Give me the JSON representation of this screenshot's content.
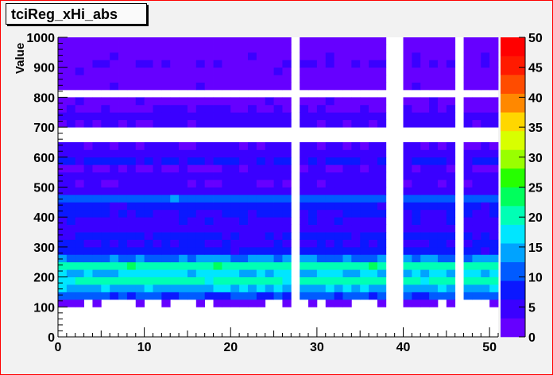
{
  "title": "tciReg_xHi_abs",
  "chart_data": {
    "type": "heatmap",
    "title": "tciReg_xHi_abs",
    "xlabel": "",
    "ylabel": "Value",
    "xlim": [
      0,
      51
    ],
    "ylim": [
      0,
      1000
    ],
    "x_ticks": [
      "0",
      "10",
      "20",
      "30",
      "40",
      "50"
    ],
    "y_ticks": [
      "0",
      "100",
      "200",
      "300",
      "400",
      "500",
      "600",
      "700",
      "800",
      "900",
      "1000"
    ],
    "colorbar_range": [
      0,
      50
    ],
    "colorbar_ticks": [
      "0",
      "5",
      "10",
      "15",
      "20",
      "25",
      "30",
      "35",
      "40",
      "45",
      "50"
    ],
    "grid": false,
    "empty_columns": [
      27,
      38,
      39,
      46
    ],
    "empty_rows_y": [
      812.5,
      675
    ],
    "bin_count_bands": [
      {
        "y_from": 0,
        "y_to": 25,
        "value": 0
      },
      {
        "y_from": 100,
        "y_to": 125,
        "value": 2
      },
      {
        "y_from": 125,
        "y_to": 150,
        "value": 11
      },
      {
        "y_from": 150,
        "y_to": 175,
        "value": 16
      },
      {
        "y_from": 175,
        "y_to": 200,
        "value": 21
      },
      {
        "y_from": 200,
        "y_to": 225,
        "value": 17
      },
      {
        "y_from": 225,
        "y_to": 250,
        "value": 22
      },
      {
        "y_from": 250,
        "y_to": 275,
        "value": 13
      },
      {
        "y_from": 275,
        "y_to": 300,
        "value": 8
      },
      {
        "y_from": 300,
        "y_to": 325,
        "value": 6
      },
      {
        "y_from": 325,
        "y_to": 350,
        "value": 7
      },
      {
        "y_from": 350,
        "y_to": 375,
        "value": 5
      },
      {
        "y_from": 375,
        "y_to": 400,
        "value": 6
      },
      {
        "y_from": 400,
        "y_to": 425,
        "value": 7
      },
      {
        "y_from": 425,
        "y_to": 450,
        "value": 8
      },
      {
        "y_from": 450,
        "y_to": 475,
        "value": 12
      },
      {
        "y_from": 475,
        "y_to": 500,
        "value": 5
      },
      {
        "y_from": 500,
        "y_to": 525,
        "value": 4
      },
      {
        "y_from": 525,
        "y_to": 550,
        "value": 5
      },
      {
        "y_from": 550,
        "y_to": 575,
        "value": 4
      },
      {
        "y_from": 575,
        "y_to": 600,
        "value": 7
      },
      {
        "y_from": 600,
        "y_to": 625,
        "value": 5
      },
      {
        "y_from": 625,
        "y_to": 650,
        "value": 4
      },
      {
        "y_from": 650,
        "y_to": 675,
        "value": 5
      },
      {
        "y_from": 675,
        "y_to": 700,
        "value": 3
      },
      {
        "y_from": 700,
        "y_to": 725,
        "value": 4
      },
      {
        "y_from": 725,
        "y_to": 750,
        "value": 5
      },
      {
        "y_from": 750,
        "y_to": 775,
        "value": 3
      },
      {
        "y_from": 775,
        "y_to": 800,
        "value": 2
      },
      {
        "y_from": 825,
        "y_to": 850,
        "value": 2
      },
      {
        "y_from": 850,
        "y_to": 875,
        "value": 1
      },
      {
        "y_from": 875,
        "y_to": 900,
        "value": 2
      },
      {
        "y_from": 900,
        "y_to": 925,
        "value": 3
      },
      {
        "y_from": 925,
        "y_to": 950,
        "value": 2
      },
      {
        "y_from": 950,
        "y_to": 975,
        "value": 1
      },
      {
        "y_from": 975,
        "y_to": 1000,
        "value": 1
      }
    ]
  }
}
